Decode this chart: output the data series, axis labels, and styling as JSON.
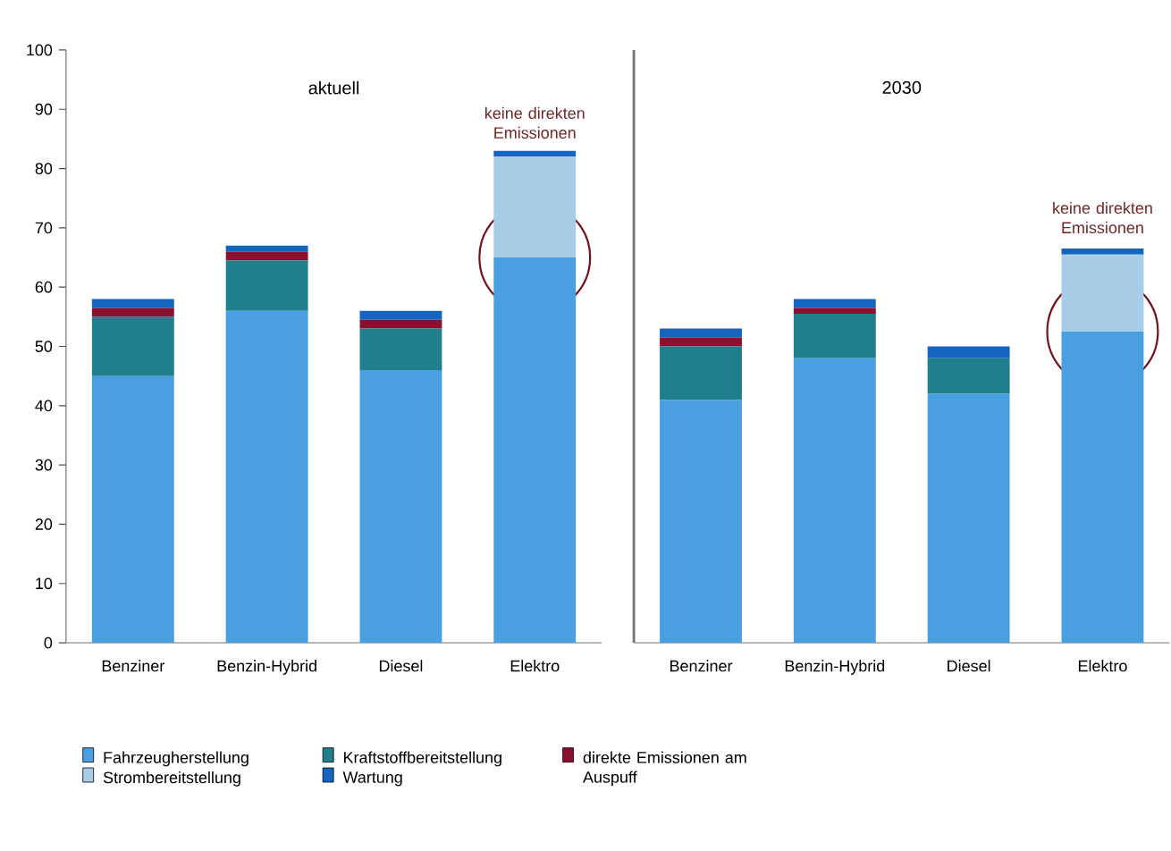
{
  "chart_data": [
    {
      "type": "bar",
      "title": "aktuell",
      "stacked": true,
      "legend": "bottom",
      "categories": [
        "Benziner",
        "Benzin-Hybrid",
        "Diesel",
        "Elektro"
      ],
      "ylim": [
        0,
        100
      ],
      "yticks": [
        0,
        10,
        20,
        30,
        40,
        50,
        60,
        70,
        80,
        90,
        100
      ],
      "series": [
        {
          "name": "Fahrzeugherstellung",
          "color": "#4a9fe0",
          "values": [
            45,
            56,
            46,
            65
          ]
        },
        {
          "name": "Kraftstoffbereitstellung",
          "color": "#1f7f8c",
          "values": [
            10,
            8.5,
            7,
            0
          ]
        },
        {
          "name": "direkte Emissionen am Auspuff",
          "color": "#8b1030",
          "values": [
            1.5,
            1.5,
            1.5,
            0
          ]
        },
        {
          "name": "Strombereitstellung",
          "color": "#a8cde6",
          "values": [
            0,
            0,
            0,
            17
          ]
        },
        {
          "name": "Wartung",
          "color": "#1565c0",
          "values": [
            1.5,
            1,
            1.5,
            1
          ]
        }
      ],
      "annotations": [
        {
          "text": "keine direkten Emissionen",
          "x": "Elektro",
          "y": 84
        }
      ]
    },
    {
      "type": "bar",
      "title": "2030",
      "stacked": true,
      "tick_labels": "x",
      "categories": [
        "Benziner",
        "Benzin-Hybrid",
        "Diesel",
        "Elektro"
      ],
      "ylim": [
        0,
        100
      ],
      "series": [
        {
          "color": "#4a9fe0",
          "values": [
            41,
            48,
            42,
            52.5
          ]
        },
        {
          "color": "#1f7f8c",
          "values": [
            9,
            7.5,
            6,
            0
          ]
        },
        {
          "color": "#8b1030",
          "values": [
            1.5,
            1,
            0,
            0
          ]
        },
        {
          "color": "#a8cde6",
          "values": [
            0,
            0,
            0,
            13
          ]
        },
        {
          "color": "#1565c0",
          "values": [
            1.5,
            1.5,
            2,
            1
          ]
        }
      ],
      "annotations": [
        {
          "text": "keine direkten Emissionen",
          "x": "Elektro",
          "y": 68
        }
      ]
    }
  ]
}
